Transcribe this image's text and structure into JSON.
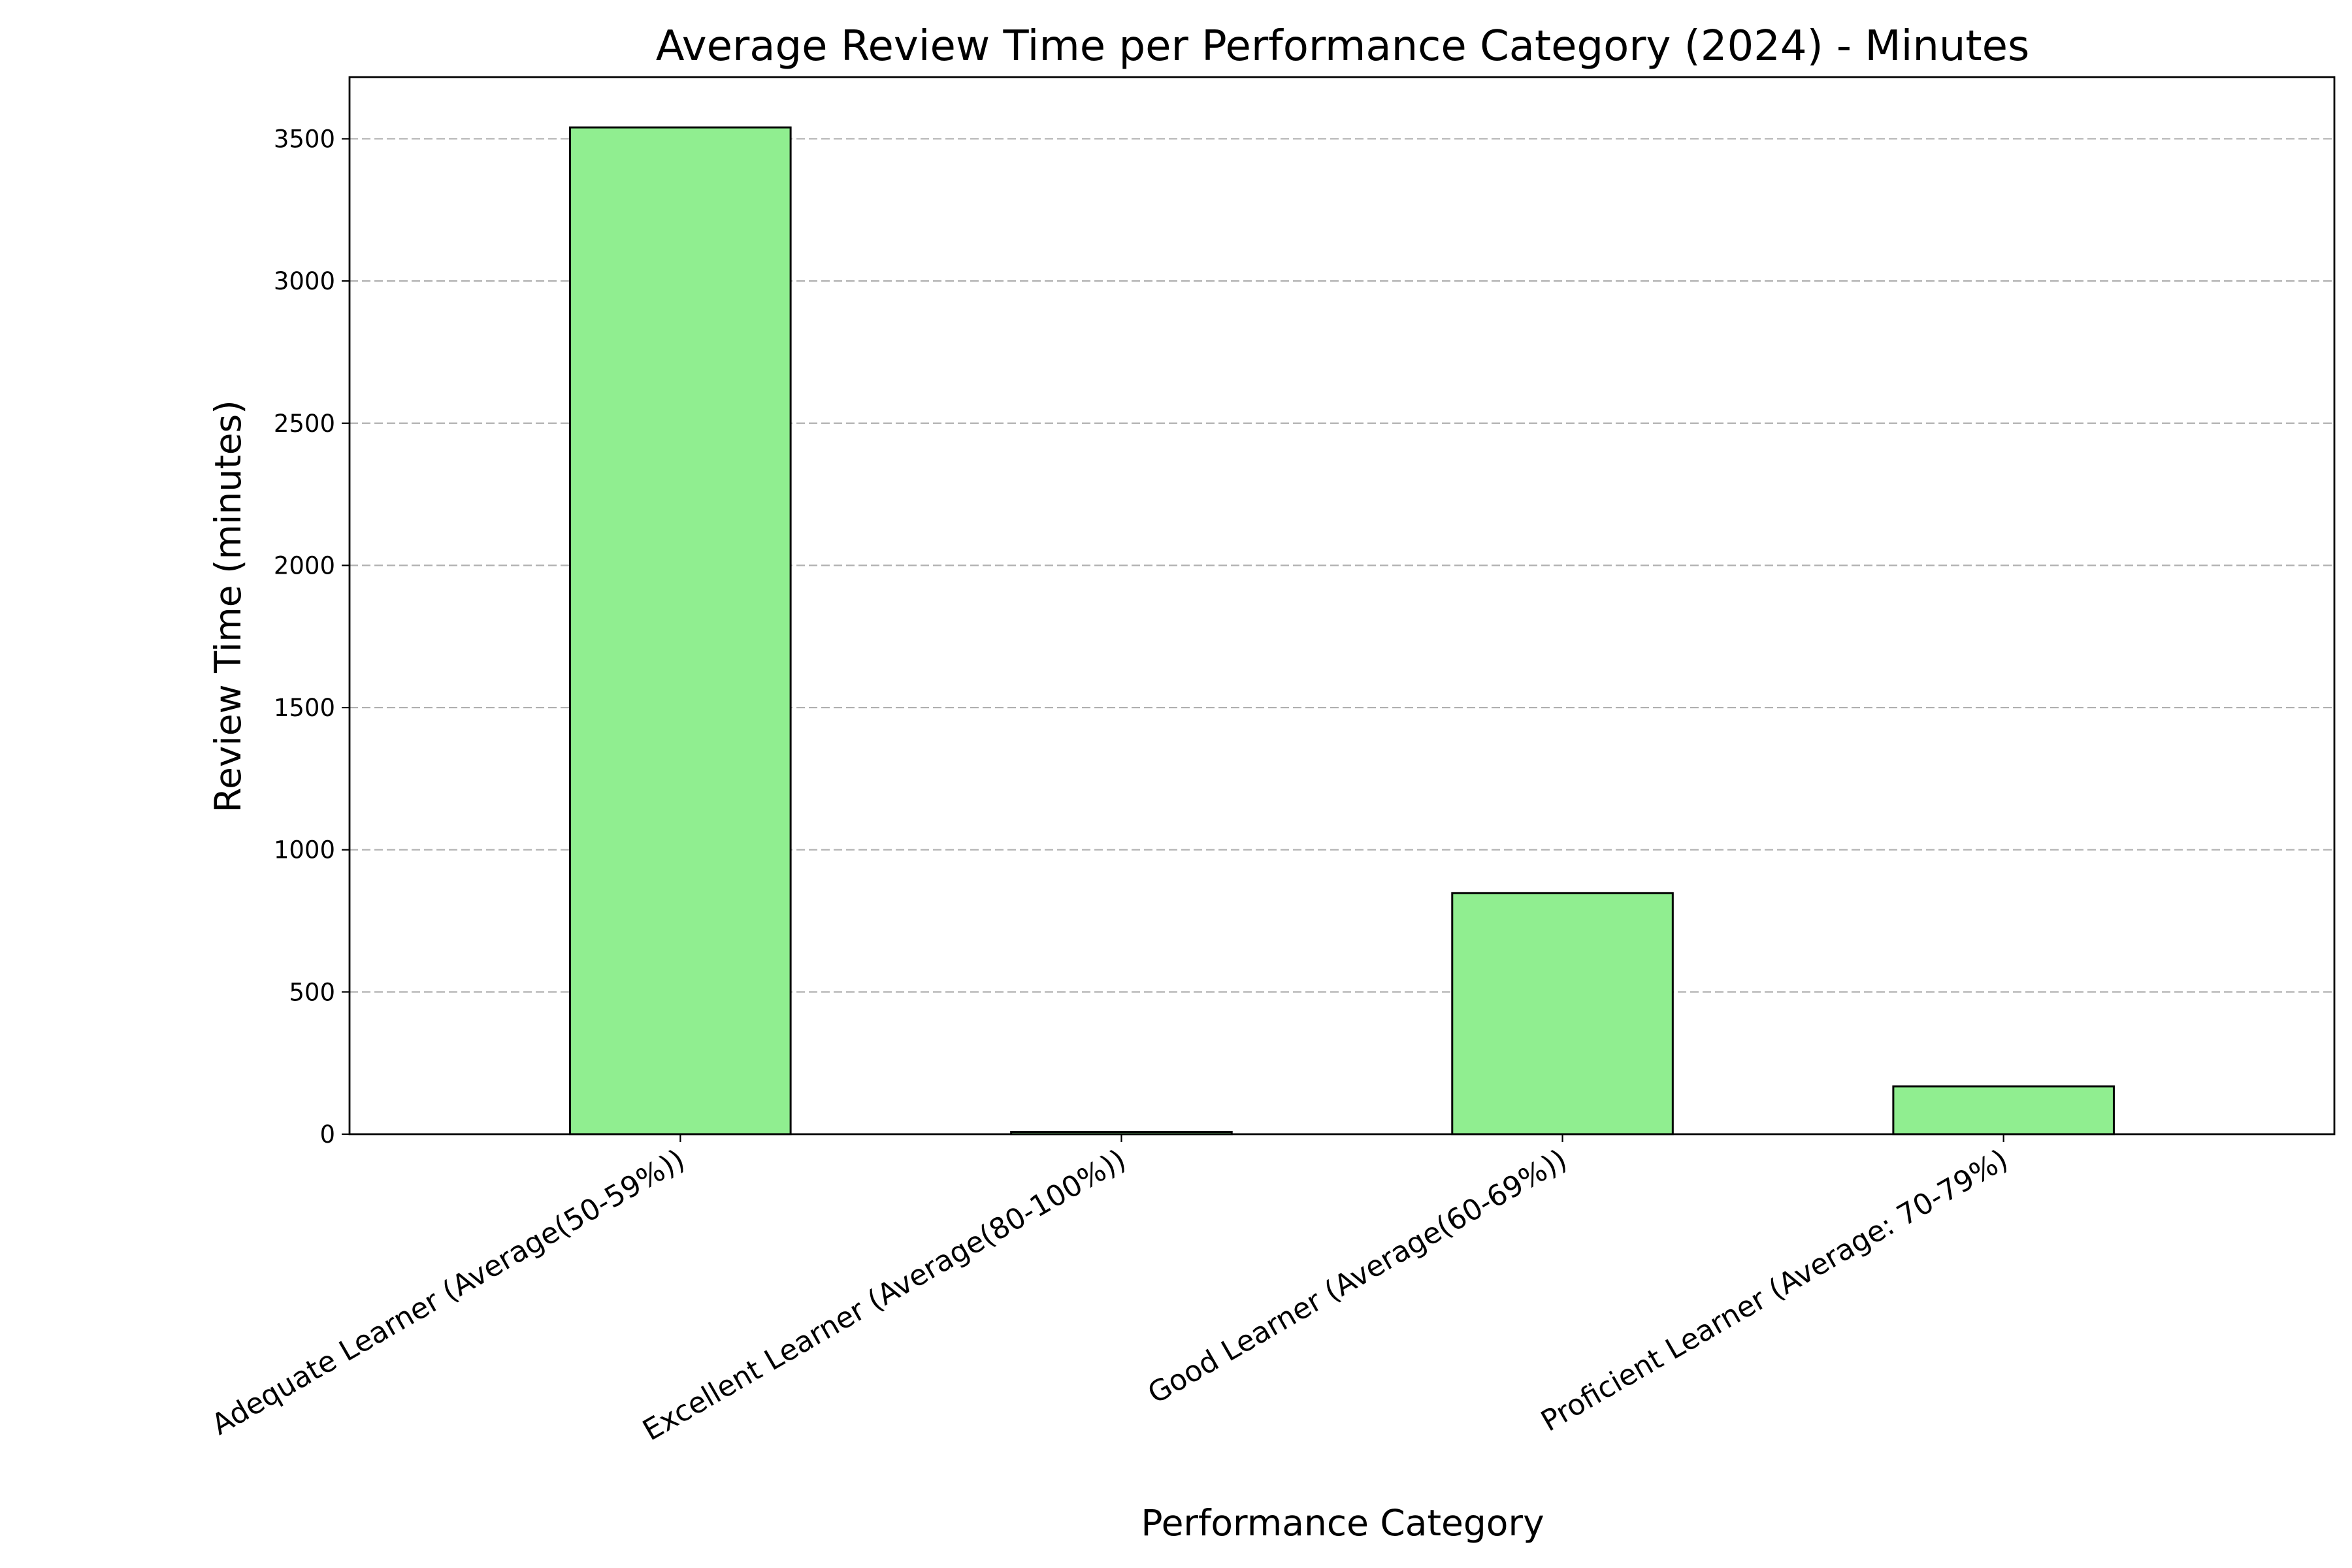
{
  "chart_data": {
    "type": "bar",
    "title": "Average Review Time per Performance Category (2024) - Minutes",
    "xlabel": "Performance Category",
    "ylabel": "Review Time (minutes)",
    "categories": [
      "Adequate Learner (Average(50-59%))",
      "Excellent Learner (Average(80-100%))",
      "Good Learner (Average(60-69%))",
      "Proficient Learner (Average: 70-79%)"
    ],
    "values": [
      3540,
      8,
      848,
      168
    ],
    "ylim": [
      0,
      3717
    ],
    "yticks": [
      0,
      500,
      1000,
      1500,
      2000,
      2500,
      3000,
      3500
    ],
    "grid": "horizontal dashed",
    "legend": "none",
    "bar_color": "#90ee90",
    "bar_edge_color": "#000000",
    "grid_color": "#b0b0b0"
  }
}
